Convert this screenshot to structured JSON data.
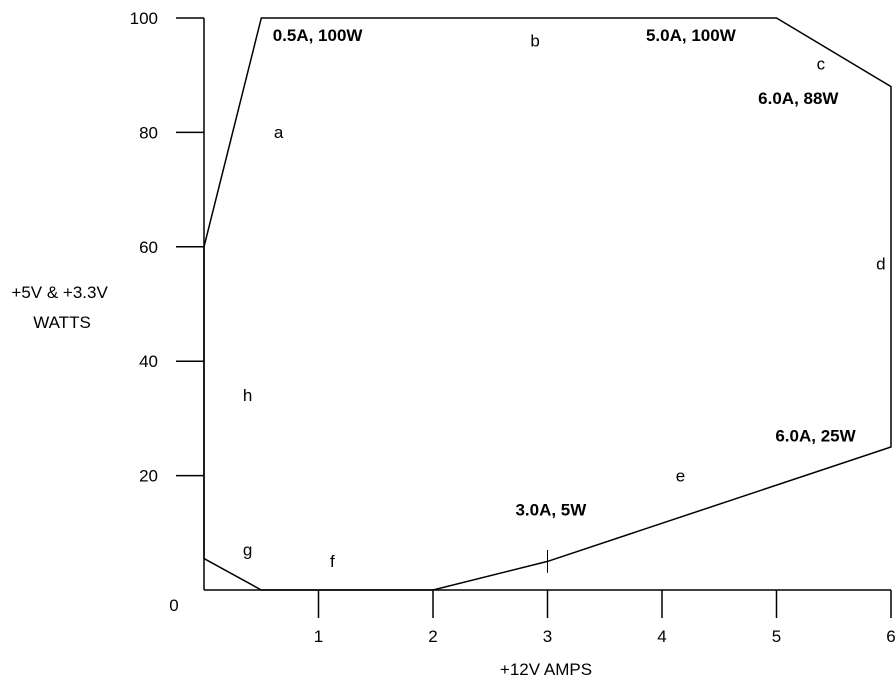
{
  "chart_data": {
    "type": "line",
    "xlabel": "+12V AMPS",
    "ylabel_lines": [
      "+5V & +3.3V",
      "WATTS"
    ],
    "xlim": [
      0,
      6
    ],
    "ylim": [
      0,
      100
    ],
    "x_ticks": [
      1,
      2,
      3,
      4,
      5,
      6
    ],
    "y_ticks": [
      20,
      40,
      60,
      80,
      100
    ],
    "origin_label": "0",
    "grid": false,
    "boundary": [
      {
        "x": 0,
        "y": 60
      },
      {
        "x": 0.5,
        "y": 100
      },
      {
        "x": 5.0,
        "y": 100
      },
      {
        "x": 6.0,
        "y": 88
      },
      {
        "x": 6.0,
        "y": 25
      },
      {
        "x": 3.0,
        "y": 5
      },
      {
        "x": 2.0,
        "y": 0
      },
      {
        "x": 0.5,
        "y": 0
      },
      {
        "x": 0,
        "y": 5.5
      },
      {
        "x": 0,
        "y": 60
      }
    ],
    "marker": {
      "x": 3.0,
      "y_from": 3,
      "y_to": 7
    },
    "annotations": [
      {
        "text": "0.5A, 100W",
        "x": 0.6,
        "y": 96
      },
      {
        "text": "5.0A, 100W",
        "x": 3.86,
        "y": 96
      },
      {
        "text": "6.0A, 88W",
        "x": 4.84,
        "y": 85
      },
      {
        "text": "6.0A, 25W",
        "x": 4.99,
        "y": 26
      },
      {
        "text": "3.0A, 5W",
        "x": 2.72,
        "y": 13
      }
    ],
    "segment_labels": [
      {
        "text": "a",
        "x": 0.61,
        "y": 79
      },
      {
        "text": "b",
        "x": 2.85,
        "y": 95
      },
      {
        "text": "c",
        "x": 5.35,
        "y": 91
      },
      {
        "text": "d",
        "x": 5.87,
        "y": 56
      },
      {
        "text": "e",
        "x": 4.12,
        "y": 19
      },
      {
        "text": "f",
        "x": 1.1,
        "y": 4
      },
      {
        "text": "g",
        "x": 0.34,
        "y": 6
      },
      {
        "text": "h",
        "x": 0.34,
        "y": 33
      }
    ]
  }
}
